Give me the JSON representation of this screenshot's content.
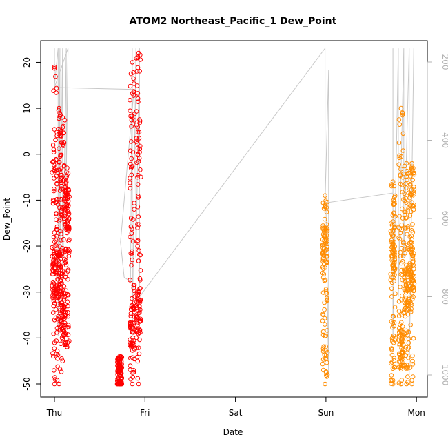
{
  "chart_data": {
    "type": "scatter",
    "title": "ATOM2 Northeast_Pacific_1 Dew_Point",
    "xlabel": "Date",
    "ylabel": "Dew_Point",
    "x_ticks": [
      "Thu",
      "Fri",
      "Sat",
      "Sun",
      "Mon"
    ],
    "y_ticks": [
      20,
      10,
      0,
      -10,
      -20,
      -30,
      -40,
      -50
    ],
    "y_tick_labels": [
      "20",
      "10",
      "0",
      "-10",
      "-20",
      "-30",
      "-40",
      "-50"
    ],
    "ylim": [
      -53,
      25
    ],
    "y2_ticks": [
      200,
      400,
      600,
      800,
      1000
    ],
    "y2_tick_labels": [
      "200",
      "400",
      "600",
      "800",
      "1000"
    ],
    "y2lim": [
      1050,
      165
    ],
    "y2_reversed": true,
    "grid": false,
    "legend": "none",
    "colors": {
      "series_1": "#ff0000",
      "series_2": "#ff8c00",
      "pressure_line": "#c8c8c8"
    },
    "series": [
      {
        "marker": "open-circle",
        "color": "#ff0000",
        "columns": [
          {
            "day": 0.0,
            "y_min": -50,
            "y_max": 19,
            "peak": -27
          },
          {
            "day": 0.05,
            "y_min": -50,
            "y_max": 10,
            "peak": -25
          },
          {
            "day": 0.09,
            "y_min": -45,
            "y_max": 8,
            "peak": -35
          },
          {
            "day": 0.14,
            "y_min": -42,
            "y_max": -3,
            "peak": -12
          },
          {
            "day": 0.72,
            "y_min": -50,
            "y_max": -44,
            "peak": -49
          },
          {
            "day": 0.86,
            "y_min": -50,
            "y_max": 20,
            "peak": -38
          },
          {
            "day": 0.93,
            "y_min": -50,
            "y_max": 22,
            "peak": -35
          }
        ]
      },
      {
        "marker": "open-circle",
        "color": "#ff8c00",
        "columns": [
          {
            "day": 2.99,
            "y_min": -50,
            "y_max": -9,
            "peak": -20
          },
          {
            "day": 3.74,
            "y_min": -50,
            "y_max": -6,
            "peak": -20
          },
          {
            "day": 3.83,
            "y_min": -50,
            "y_max": 10,
            "peak": -42
          },
          {
            "day": 3.89,
            "y_min": -50,
            "y_max": -2,
            "peak": -30
          },
          {
            "day": 3.95,
            "y_min": -50,
            "y_max": -2,
            "peak": -25
          }
        ]
      }
    ],
    "pressure_line": {
      "axis": "right",
      "color": "#c8c8c8",
      "points": [
        [
          0.0,
          165
        ],
        [
          0.0,
          260
        ],
        [
          0.04,
          165
        ],
        [
          0.04,
          900
        ],
        [
          0.06,
          165
        ],
        [
          0.06,
          700
        ],
        [
          0.09,
          165
        ],
        [
          0.09,
          800
        ],
        [
          0.13,
          165
        ],
        [
          0.13,
          500
        ],
        [
          0.15,
          165
        ],
        [
          0.0,
          265
        ],
        [
          0.88,
          270
        ],
        [
          0.73,
          660
        ],
        [
          0.77,
          750
        ],
        [
          0.8,
          755
        ],
        [
          0.84,
          760
        ],
        [
          0.86,
          165
        ],
        [
          0.86,
          900
        ],
        [
          0.9,
          165
        ],
        [
          0.9,
          700
        ],
        [
          0.94,
          165
        ],
        [
          0.94,
          800
        ],
        [
          2.99,
          165
        ],
        [
          2.99,
          560
        ],
        [
          3.03,
          220
        ],
        [
          3.03,
          1000
        ],
        [
          3.0,
          560
        ],
        [
          3.74,
          535
        ],
        [
          3.74,
          165
        ],
        [
          3.74,
          900
        ],
        [
          3.8,
          165
        ],
        [
          3.8,
          800
        ],
        [
          3.86,
          165
        ],
        [
          3.86,
          700
        ],
        [
          3.92,
          165
        ],
        [
          3.92,
          1000
        ],
        [
          3.97,
          165
        ]
      ]
    }
  }
}
